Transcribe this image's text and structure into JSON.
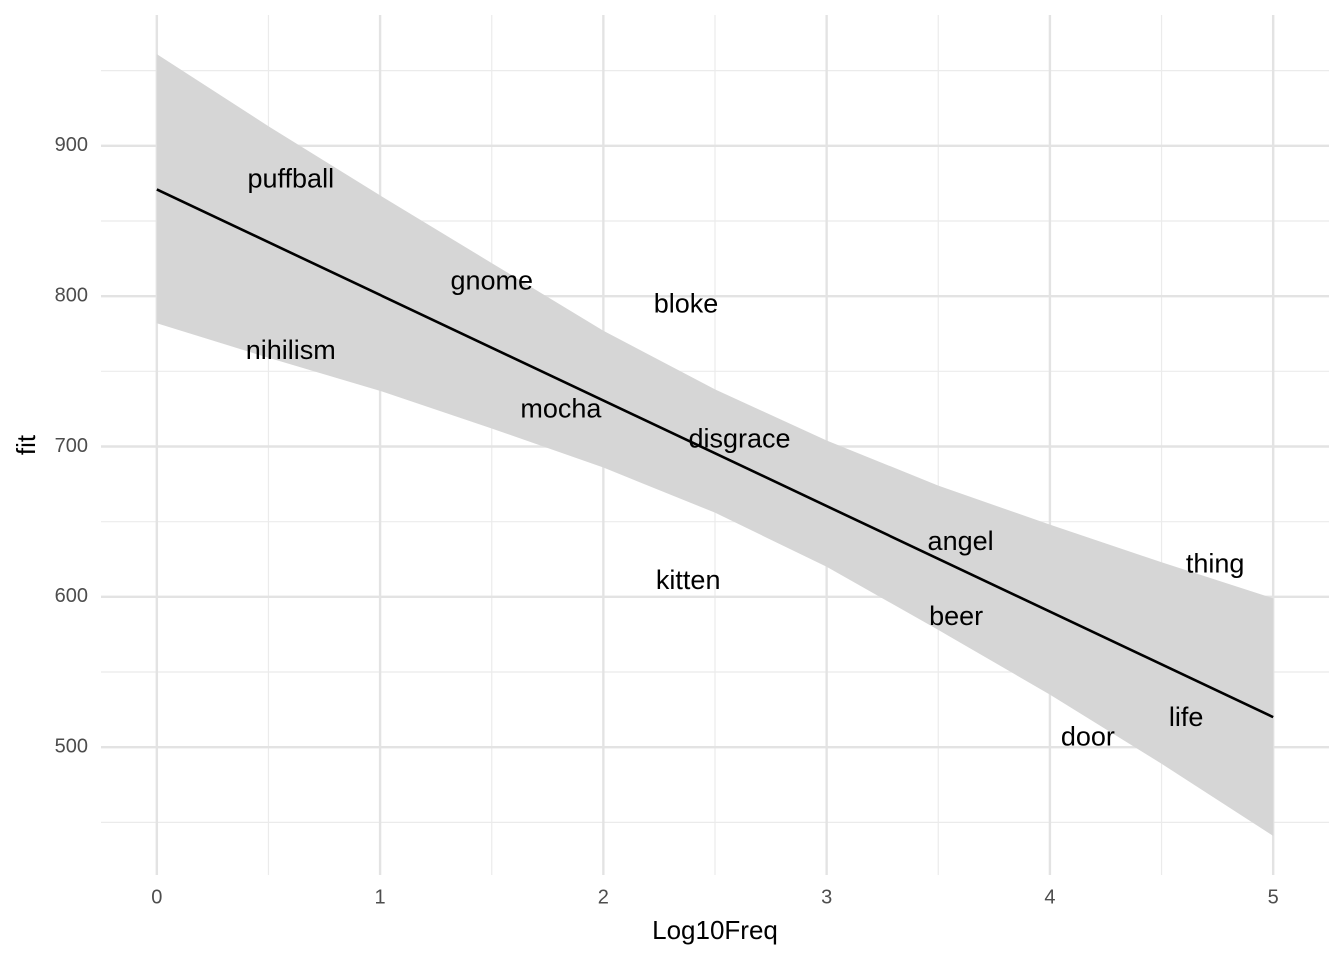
{
  "chart_data": {
    "type": "scatter",
    "x_label": "Log10Freq",
    "y_label": "fit",
    "xlim": [
      -0.25,
      5.25
    ],
    "ylim": [
      415,
      987
    ],
    "xticks": [
      0,
      1,
      2,
      3,
      4,
      5
    ],
    "yticks": [
      500,
      600,
      700,
      800,
      900
    ],
    "minor_xticks": [
      0.5,
      1.5,
      2.5,
      3.5,
      4.5
    ],
    "minor_yticks": [
      450,
      550,
      650,
      750,
      850,
      950
    ],
    "grid": true,
    "labels": [
      "puffball",
      "gnome",
      "bloke",
      "nihilism",
      "mocha",
      "disgrace",
      "angel",
      "thing",
      "kitten",
      "beer",
      "life",
      "door"
    ],
    "x": [
      0.6,
      1.5,
      2.37,
      0.6,
      1.81,
      2.61,
      3.6,
      4.74,
      2.38,
      3.58,
      4.61,
      4.17
    ],
    "y": [
      877,
      809,
      794,
      763,
      724,
      704,
      636,
      621,
      610,
      586,
      519,
      506
    ],
    "fit": {
      "x": [
        0,
        5
      ],
      "y": [
        871,
        520
      ],
      "color": "#000000"
    },
    "band": {
      "x": [
        0,
        0.5,
        1,
        1.5,
        2,
        2.5,
        3,
        3.5,
        4,
        4.5,
        5
      ],
      "upper": [
        961,
        913,
        867,
        822,
        777,
        738,
        704,
        674,
        648,
        623,
        599
      ],
      "lower": [
        782,
        759,
        737,
        712,
        686,
        656,
        620,
        578,
        535,
        489,
        441
      ],
      "color": "#d6d6d6"
    }
  }
}
